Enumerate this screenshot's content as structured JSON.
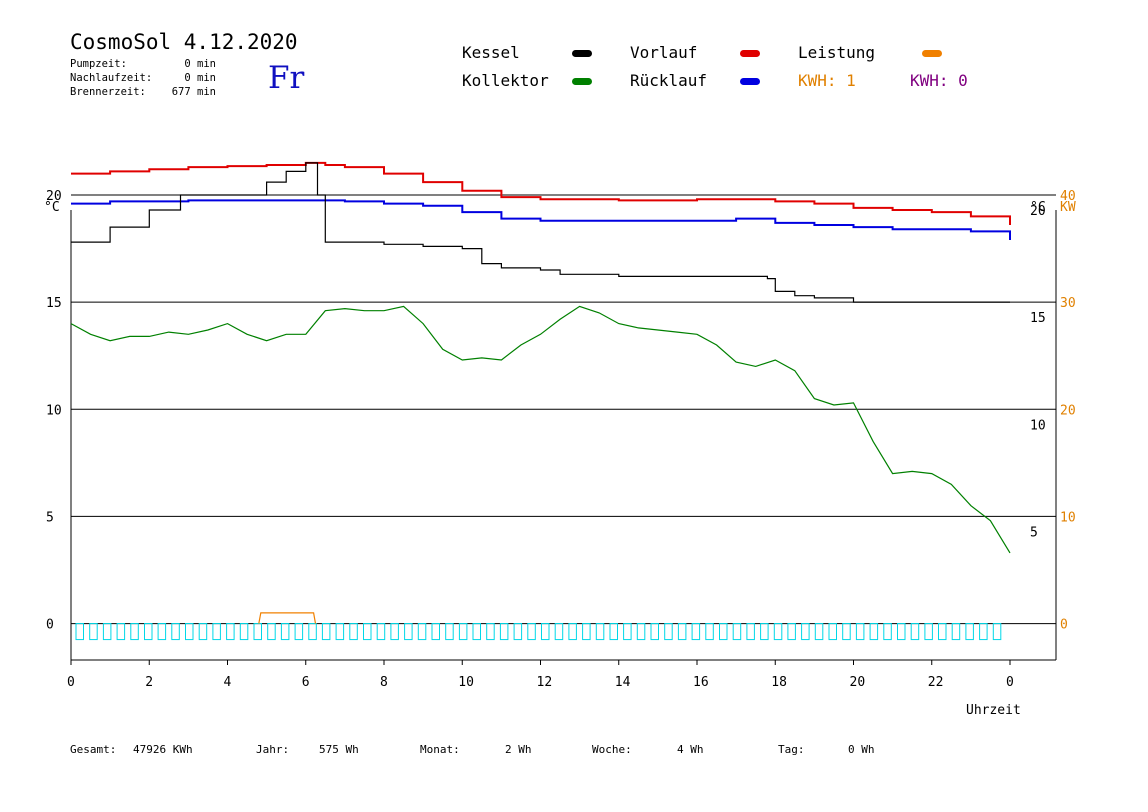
{
  "header": {
    "title": "CosmoSol 4.12.2020",
    "weekday": "Fr",
    "stats": [
      {
        "label": "Pumpzeit:",
        "value": "0 min"
      },
      {
        "label": "Nachlaufzeit:",
        "value": "0 min"
      },
      {
        "label": "Brennerzeit:",
        "value": "677 min"
      }
    ]
  },
  "legend": {
    "kessel": {
      "label": "Kessel",
      "color": "#000000"
    },
    "vorlauf": {
      "label": "Vorlauf",
      "color": "#e00000"
    },
    "leistung": {
      "label": "Leistung",
      "color": "#f08000"
    },
    "kollektor": {
      "label": "Kollektor",
      "color": "#008000"
    },
    "ruecklauf": {
      "label": "Rücklauf",
      "color": "#0000e0"
    },
    "kwh1": {
      "label": "KWH: 1",
      "color": "#e08000"
    },
    "kwh2": {
      "label": "KWH: 0",
      "color": "#800080"
    }
  },
  "footer": {
    "gesamt_label": "Gesamt:",
    "gesamt_value": "47926 KWh",
    "jahr_label": "Jahr:",
    "jahr_value": "575 Wh",
    "monat_label": "Monat:",
    "monat_value": "2 Wh",
    "woche_label": "Woche:",
    "woche_value": "4 Wh",
    "tag_label": "Tag:",
    "tag_value": "0 Wh"
  },
  "chart_data": {
    "type": "line",
    "xlabel": "Uhrzeit",
    "y_left_unit": "°C",
    "y_right_unit": "°C",
    "y_right2_unit": "KW",
    "x_ticks": [
      "0",
      "2",
      "4",
      "6",
      "8",
      "10",
      "12",
      "14",
      "16",
      "18",
      "20",
      "22",
      "0"
    ],
    "xlim": [
      0,
      24
    ],
    "ylim": [
      -1.7,
      19.3
    ],
    "y_left_ticks": [
      0,
      5,
      10,
      15,
      20
    ],
    "y_right_ticks": [
      "5",
      "10",
      "15",
      "20"
    ],
    "y_kw_ticks": [
      "0",
      "10",
      "20",
      "30",
      "40"
    ],
    "grid_y": [
      0,
      5,
      10,
      15,
      20
    ],
    "colors": {
      "kessel": "#000000",
      "vorlauf": "#e00000",
      "ruecklauf": "#0000e0",
      "kollektor": "#008000",
      "leistung": "#f08000",
      "pulses": "#00d8e8"
    },
    "series": [
      {
        "name": "Vorlauf",
        "key": "vorlauf",
        "x": [
          0,
          1,
          2,
          3,
          4,
          5,
          6,
          6.5,
          7,
          8,
          9,
          10,
          11,
          12,
          13,
          14,
          15,
          16,
          17,
          18,
          19,
          20,
          21,
          22,
          23,
          24
        ],
        "y": [
          21.0,
          21.1,
          21.2,
          21.3,
          21.35,
          21.4,
          21.5,
          21.4,
          21.3,
          21.0,
          20.6,
          20.2,
          19.9,
          19.8,
          19.8,
          19.75,
          19.75,
          19.8,
          19.8,
          19.7,
          19.6,
          19.4,
          19.3,
          19.2,
          19.0,
          18.6
        ]
      },
      {
        "name": "Rücklauf",
        "key": "ruecklauf",
        "x": [
          0,
          1,
          2,
          3,
          4,
          5,
          6,
          7,
          8,
          9,
          10,
          11,
          12,
          13,
          14,
          15,
          16,
          17,
          18,
          19,
          20,
          21,
          22,
          23,
          24
        ],
        "y": [
          19.6,
          19.7,
          19.7,
          19.75,
          19.75,
          19.75,
          19.75,
          19.7,
          19.6,
          19.5,
          19.2,
          18.9,
          18.8,
          18.8,
          18.8,
          18.8,
          18.8,
          18.9,
          18.7,
          18.6,
          18.5,
          18.4,
          18.4,
          18.3,
          17.9
        ]
      },
      {
        "name": "Kessel",
        "key": "kessel",
        "x": [
          0,
          1,
          2,
          2.8,
          4.4,
          5,
          5.5,
          6.0,
          6.2,
          6.3,
          6.5,
          7,
          8,
          9,
          10,
          10.5,
          11,
          12,
          12.5,
          13,
          14,
          15,
          16,
          17,
          17.8,
          18,
          18.5,
          19,
          19.5,
          20,
          21,
          22,
          23,
          24
        ],
        "y": [
          17.8,
          18.5,
          19.3,
          20.0,
          20.0,
          20.6,
          21.1,
          21.5,
          21.5,
          20.0,
          17.8,
          17.8,
          17.7,
          17.6,
          17.5,
          16.8,
          16.6,
          16.5,
          16.3,
          16.3,
          16.2,
          16.2,
          16.2,
          16.2,
          16.1,
          15.5,
          15.3,
          15.2,
          15.2,
          15.0,
          15.0,
          15.0,
          15.0,
          15.0
        ]
      },
      {
        "name": "Kollektor",
        "key": "kollektor",
        "x": [
          0,
          0.5,
          1,
          1.5,
          2,
          2.5,
          3,
          3.5,
          4,
          4.5,
          5,
          5.5,
          6,
          6.5,
          7,
          7.5,
          8,
          8.5,
          9,
          9.5,
          10,
          10.5,
          11,
          11.5,
          12,
          12.5,
          13,
          13.5,
          14,
          14.5,
          15,
          15.5,
          16,
          16.5,
          17,
          17.5,
          18,
          18.5,
          19,
          19.5,
          20,
          20.5,
          21,
          21.5,
          22,
          22.5,
          23,
          23.5,
          24
        ],
        "y": [
          14.0,
          13.5,
          13.2,
          13.4,
          13.4,
          13.6,
          13.5,
          13.7,
          14.0,
          13.5,
          13.2,
          13.5,
          13.5,
          14.6,
          14.7,
          14.6,
          14.6,
          14.8,
          14.0,
          12.8,
          12.3,
          12.4,
          12.3,
          13.0,
          13.5,
          14.2,
          14.8,
          14.5,
          14.0,
          13.8,
          13.7,
          13.6,
          13.5,
          13.0,
          12.2,
          12.0,
          12.3,
          11.8,
          10.5,
          10.2,
          10.3,
          8.5,
          7.0,
          7.1,
          7.0,
          6.5,
          5.5,
          4.8,
          3.3
        ]
      },
      {
        "name": "Leistung",
        "key": "leistung",
        "x": [
          4.8,
          4.85,
          6.2,
          6.25
        ],
        "y": [
          0,
          0.5,
          0.5,
          0
        ]
      }
    ],
    "pulse_count": 68
  }
}
